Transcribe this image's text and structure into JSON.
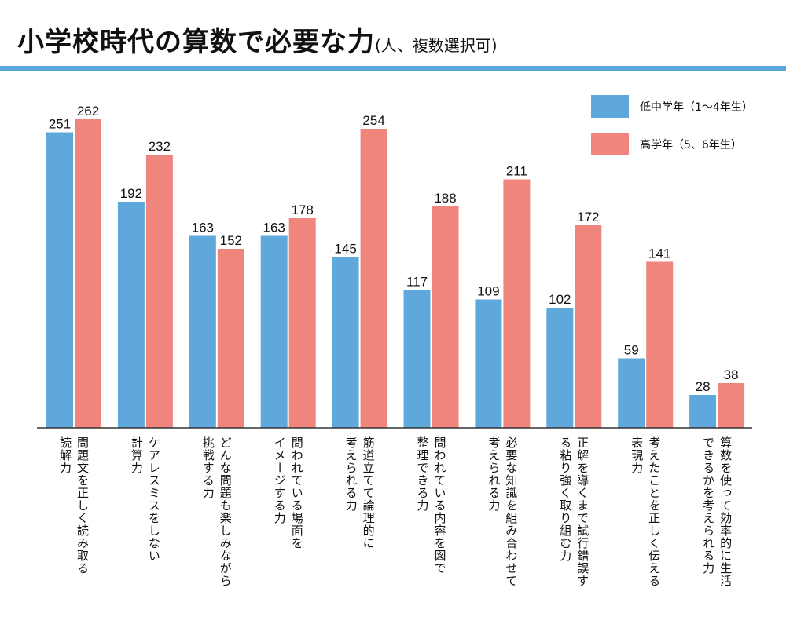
{
  "header": {
    "title": "小学校時代の算数で必要な力",
    "subtitle": "(人、複数選択可)"
  },
  "colors": {
    "series_low": "#5ea8dc",
    "series_high": "#ef857d",
    "rule": "#5aa5da",
    "axis": "#333333"
  },
  "chart_data": {
    "type": "bar",
    "title": "小学校時代の算数で必要な力",
    "subtitle": "(人、複数選択可)",
    "ylim": [
      0,
      280
    ],
    "grid": false,
    "legend_position": "top-right",
    "categories": [
      "問題文を正しく読み取る\n読解力",
      "ケアレスミスをしない\n計算力",
      "どんな問題も楽しみながら\n挑戦する力",
      "問われている場面を\nイメージする力",
      "筋道立てて論理的に\n考えられる力",
      "問われている内容を図で\n整理できる力",
      "必要な知識を組み合わせて\n考えられる力",
      "正解を導くまで試行錯誤す\nる粘り強く取り組む力",
      "考えたことを正しく伝える\n表現力",
      "算数を使って効率的に生活\nできるかを考えられる力"
    ],
    "series": [
      {
        "name": "低中学年（1〜4年生）",
        "values": [
          251,
          192,
          163,
          163,
          145,
          117,
          109,
          102,
          59,
          28
        ]
      },
      {
        "name": "高学年（5、6年生）",
        "values": [
          262,
          232,
          152,
          178,
          254,
          188,
          211,
          172,
          141,
          38
        ]
      }
    ]
  }
}
